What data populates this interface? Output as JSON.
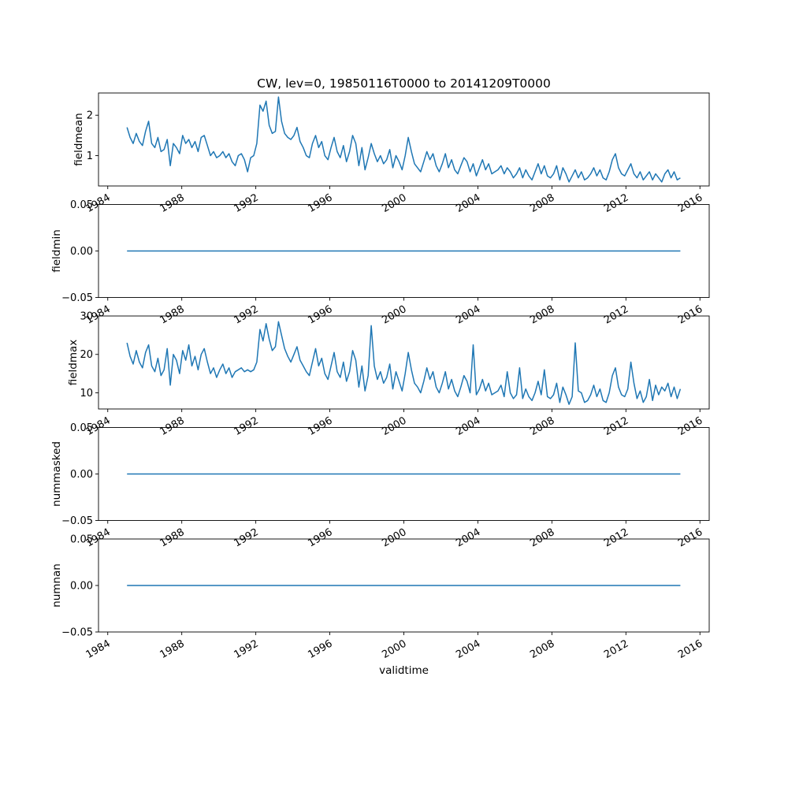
{
  "chart_data": {
    "type": "line",
    "title": "CW, lev=0, 19850116T0000 to 20141209T0000",
    "xlabel": "validtime",
    "line_color": "#1f77b4",
    "x_start": 1985.04,
    "x_end": 2014.94,
    "xlim": [
      1983.5,
      2016.5
    ],
    "xticks": [
      1984,
      1988,
      1992,
      1996,
      2000,
      2004,
      2008,
      2012,
      2016
    ],
    "xtick_labels": [
      "1984",
      "1988",
      "1992",
      "1996",
      "2000",
      "2004",
      "2008",
      "2012",
      "2016"
    ],
    "grid": false,
    "legend": "none",
    "panels": [
      {
        "name": "fieldmean",
        "ylabel": "fieldmean",
        "ylim": [
          0.25,
          2.55
        ],
        "yticks": [
          1,
          2
        ],
        "ytick_labels": [
          "1",
          "2"
        ],
        "values": [
          1.7,
          1.45,
          1.3,
          1.55,
          1.35,
          1.25,
          1.6,
          1.85,
          1.3,
          1.2,
          1.45,
          1.1,
          1.15,
          1.4,
          0.75,
          1.3,
          1.2,
          1.05,
          1.5,
          1.3,
          1.4,
          1.2,
          1.35,
          1.1,
          1.45,
          1.5,
          1.25,
          1.0,
          1.1,
          0.95,
          1.0,
          1.1,
          0.95,
          1.05,
          0.85,
          0.75,
          1.0,
          1.05,
          0.9,
          0.6,
          0.95,
          1.0,
          1.3,
          2.25,
          2.1,
          2.35,
          1.75,
          1.55,
          1.6,
          2.45,
          1.85,
          1.55,
          1.45,
          1.4,
          1.5,
          1.7,
          1.35,
          1.2,
          1.0,
          0.95,
          1.3,
          1.5,
          1.2,
          1.35,
          1.0,
          0.9,
          1.2,
          1.45,
          1.1,
          0.95,
          1.25,
          0.85,
          1.1,
          1.5,
          1.3,
          0.75,
          1.2,
          0.65,
          0.95,
          1.3,
          1.05,
          0.85,
          1.0,
          0.8,
          0.9,
          1.15,
          0.7,
          1.0,
          0.85,
          0.65,
          1.0,
          1.45,
          1.1,
          0.8,
          0.7,
          0.6,
          0.85,
          1.1,
          0.9,
          1.05,
          0.75,
          0.6,
          0.8,
          1.05,
          0.7,
          0.9,
          0.65,
          0.55,
          0.75,
          0.95,
          0.85,
          0.6,
          0.8,
          0.5,
          0.7,
          0.9,
          0.65,
          0.8,
          0.55,
          0.6,
          0.65,
          0.75,
          0.55,
          0.7,
          0.6,
          0.45,
          0.55,
          0.7,
          0.45,
          0.65,
          0.5,
          0.4,
          0.6,
          0.8,
          0.55,
          0.75,
          0.5,
          0.45,
          0.55,
          0.75,
          0.4,
          0.7,
          0.55,
          0.35,
          0.5,
          0.65,
          0.45,
          0.6,
          0.4,
          0.45,
          0.55,
          0.7,
          0.5,
          0.65,
          0.45,
          0.4,
          0.6,
          0.9,
          1.05,
          0.7,
          0.55,
          0.5,
          0.65,
          0.8,
          0.55,
          0.45,
          0.6,
          0.4,
          0.5,
          0.6,
          0.4,
          0.55,
          0.45,
          0.35,
          0.55,
          0.65,
          0.45,
          0.6,
          0.4,
          0.45
        ]
      },
      {
        "name": "fieldmin",
        "ylabel": "fieldmin",
        "ylim": [
          -0.05,
          0.05
        ],
        "yticks": [
          0.05,
          0.0,
          -0.05
        ],
        "ytick_labels": [
          "0.05",
          "0.00",
          "−0.05"
        ],
        "constant": 0.0
      },
      {
        "name": "fieldmax",
        "ylabel": "fieldmax",
        "ylim": [
          5.8,
          30.0
        ],
        "yticks": [
          10,
          20,
          30
        ],
        "ytick_labels": [
          "10",
          "20",
          "30"
        ],
        "values": [
          23.0,
          19.5,
          17.5,
          21.0,
          18.0,
          16.5,
          20.5,
          22.5,
          17.0,
          15.5,
          19.0,
          14.5,
          16.0,
          21.5,
          12.0,
          20.0,
          18.5,
          15.0,
          21.0,
          18.5,
          22.5,
          17.0,
          19.5,
          16.0,
          20.0,
          21.5,
          18.0,
          15.0,
          16.5,
          14.0,
          16.0,
          17.5,
          15.0,
          16.5,
          14.0,
          15.5,
          16.0,
          16.5,
          15.5,
          16.0,
          15.5,
          16.0,
          18.0,
          26.5,
          23.5,
          28.0,
          24.0,
          21.0,
          22.0,
          28.5,
          25.0,
          21.5,
          19.5,
          18.0,
          20.0,
          22.0,
          18.5,
          17.0,
          15.5,
          14.5,
          18.0,
          21.5,
          17.0,
          19.0,
          15.0,
          13.5,
          17.0,
          20.5,
          15.5,
          14.0,
          18.0,
          13.0,
          15.5,
          21.0,
          18.5,
          11.5,
          17.0,
          10.5,
          14.5,
          27.5,
          17.0,
          13.5,
          15.5,
          12.5,
          14.0,
          17.5,
          11.0,
          15.5,
          13.0,
          10.5,
          15.0,
          20.5,
          16.0,
          12.5,
          11.5,
          10.0,
          13.0,
          16.5,
          13.5,
          15.5,
          11.5,
          10.0,
          12.5,
          15.5,
          11.0,
          13.5,
          10.5,
          9.0,
          11.5,
          14.5,
          13.0,
          10.0,
          22.5,
          9.5,
          11.0,
          13.5,
          10.5,
          12.5,
          9.5,
          10.0,
          10.5,
          12.0,
          9.0,
          15.5,
          10.0,
          8.5,
          9.5,
          16.5,
          8.5,
          11.0,
          9.0,
          8.0,
          10.0,
          13.0,
          9.5,
          16.0,
          9.0,
          8.5,
          9.5,
          12.5,
          7.5,
          11.5,
          9.5,
          7.0,
          9.0,
          23.0,
          10.5,
          10.0,
          7.5,
          8.0,
          9.5,
          12.0,
          9.0,
          11.0,
          8.0,
          7.5,
          10.0,
          14.5,
          16.5,
          11.5,
          9.5,
          9.0,
          11.0,
          18.0,
          12.5,
          8.5,
          10.5,
          7.5,
          9.0,
          13.5,
          8.0,
          12.0,
          9.5,
          11.5,
          10.5,
          12.5,
          9.0,
          11.5,
          8.5,
          11.0
        ]
      },
      {
        "name": "nummasked",
        "ylabel": "nummasked",
        "ylim": [
          -0.05,
          0.05
        ],
        "yticks": [
          0.05,
          0.0,
          -0.05
        ],
        "ytick_labels": [
          "0.05",
          "0.00",
          "−0.05"
        ],
        "constant": 0.0
      },
      {
        "name": "numnan",
        "ylabel": "numnan",
        "ylim": [
          -0.05,
          0.05
        ],
        "yticks": [
          0.05,
          0.0,
          -0.05
        ],
        "ytick_labels": [
          "0.05",
          "0.00",
          "−0.05"
        ],
        "constant": 0.0
      }
    ]
  }
}
